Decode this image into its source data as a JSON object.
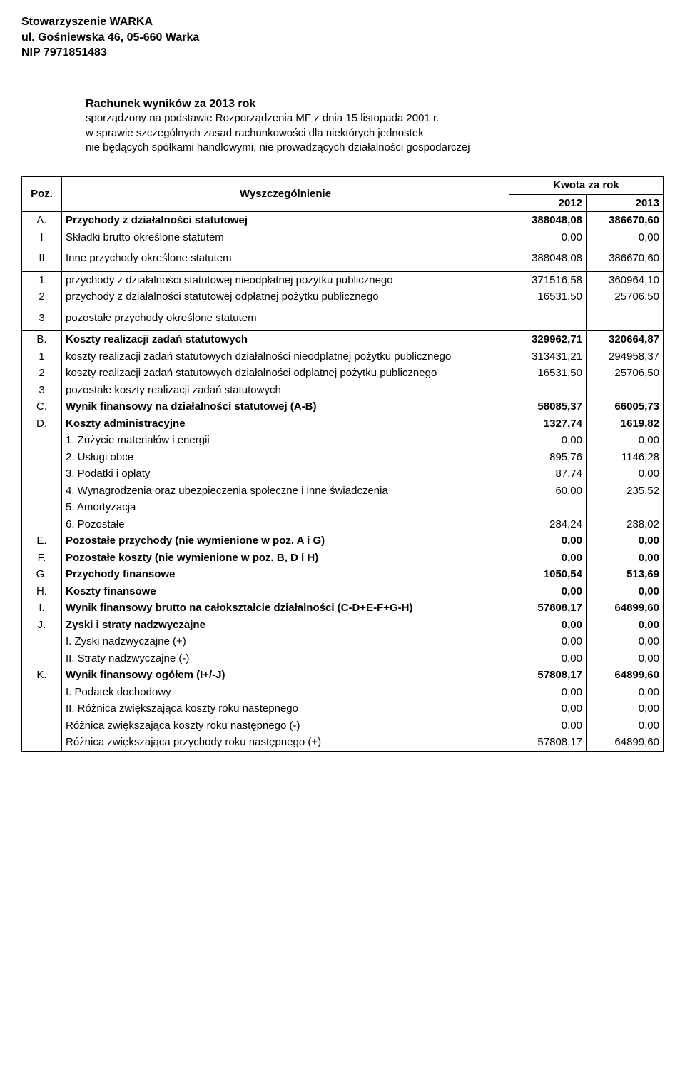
{
  "header": {
    "line1": "Stowarzyszenie WARKA",
    "line2": "ul. Gośniewska 46, 05-660 Warka",
    "line3": "NIP 7971851483"
  },
  "title": {
    "main": "Rachunek wyników za 2013 rok",
    "sub1": "sporządzony na podstawie Rozporządzenia MF z dnia 15 listopada 2001 r.",
    "sub2": "w sprawie szczególnych zasad rachunkowości dla niektórych jednostek",
    "sub3": "nie będących spółkami handlowymi, nie prowadzących działalności gospodarczej"
  },
  "table": {
    "col_poz": "Poz.",
    "col_desc": "Wyszczególnienie",
    "col_kwota": "Kwota za rok",
    "col_y1": "2012",
    "col_y2": "2013",
    "rows": [
      {
        "poz": "A.",
        "desc": "Przychody z działalności statutowej",
        "v1": "388048,08",
        "v2": "386670,60",
        "bold": true
      },
      {
        "poz": "I",
        "desc": "Składki brutto określone statutem",
        "v1": "0,00",
        "v2": "0,00"
      },
      {
        "poz": "II",
        "desc": "Inne przychody określone statutem",
        "v1": "388048,08",
        "v2": "386670,60",
        "spaced": true
      },
      {
        "poz": "1",
        "desc": "przychody z działalności statutowej nieodpłatnej pożytku publicznego",
        "v1": "371516,58",
        "v2": "360964,10"
      },
      {
        "poz": "2",
        "desc": "przychody z działalności statutowej odpłatnej pożytku publicznego",
        "v1": "16531,50",
        "v2": "25706,50"
      },
      {
        "poz": "3",
        "desc": "pozostałe przychody określone statutem",
        "v1": "",
        "v2": "",
        "spaced": true
      },
      {
        "poz": "B.",
        "desc": "Koszty realizacji zadań statutowych",
        "v1": "329962,71",
        "v2": "320664,87",
        "bold": true
      },
      {
        "poz": "1",
        "desc": "koszty realizacji zadań statutowych działalności nieodplatnej pożytku publicznego",
        "v1": "313431,21",
        "v2": "294958,37"
      },
      {
        "poz": "2",
        "desc": "koszty realizacji zadań statutowych działalności odplatnej pożytku publicznego",
        "v1": "16531,50",
        "v2": "25706,50"
      },
      {
        "poz": "3",
        "desc": "pozostałe koszty realizacji zadań statutowych",
        "v1": "",
        "v2": ""
      },
      {
        "poz": "C.",
        "desc": "Wynik finansowy na działalności statutowej (A-B)",
        "v1": "58085,37",
        "v2": "66005,73",
        "bold": true
      },
      {
        "poz": "D.",
        "desc": "Koszty administracyjne",
        "v1": "1327,74",
        "v2": "1619,82",
        "bold": true
      },
      {
        "poz": "",
        "desc": "1. Zużycie materiałów i energii",
        "v1": "0,00",
        "v2": "0,00"
      },
      {
        "poz": "",
        "desc": "2. Usługi obce",
        "v1": "895,76",
        "v2": "1146,28"
      },
      {
        "poz": "",
        "desc": "3. Podatki i opłaty",
        "v1": "87,74",
        "v2": "0,00"
      },
      {
        "poz": "",
        "desc": "4. Wynagrodzenia oraz ubezpieczenia społeczne i inne świadczenia",
        "v1": "60,00",
        "v2": "235,52"
      },
      {
        "poz": "",
        "desc": "5. Amortyzacja",
        "v1": "",
        "v2": ""
      },
      {
        "poz": "",
        "desc": "6. Pozostałe",
        "v1": "284,24",
        "v2": "238,02"
      },
      {
        "poz": "E.",
        "desc": "Pozostałe przychody (nie wymienione w poz. A i G)",
        "v1": "0,00",
        "v2": "0,00",
        "bold": true
      },
      {
        "poz": "F.",
        "desc": "Pozostałe koszty (nie wymienione w poz. B, D i H)",
        "v1": "0,00",
        "v2": "0,00",
        "bold": true
      },
      {
        "poz": "G.",
        "desc": "Przychody finansowe",
        "v1": "1050,54",
        "v2": "513,69",
        "bold": true
      },
      {
        "poz": "H.",
        "desc": "Koszty finansowe",
        "v1": "0,00",
        "v2": "0,00",
        "bold": true
      },
      {
        "poz": "I.",
        "desc": "Wynik finansowy brutto na całokształcie działalności (C-D+E-F+G-H)",
        "v1": "57808,17",
        "v2": "64899,60",
        "bold": true
      },
      {
        "poz": "J.",
        "desc": "Zyski i straty nadzwyczajne",
        "v1": "0,00",
        "v2": "0,00",
        "bold": true
      },
      {
        "poz": "",
        "desc": "I. Zyski nadzwyczajne (+)",
        "v1": "0,00",
        "v2": "0,00"
      },
      {
        "poz": "",
        "desc": "II. Straty nadzwyczajne (-)",
        "v1": "0,00",
        "v2": "0,00"
      },
      {
        "poz": "K.",
        "desc": "Wynik finansowy ogółem (I+/-J)",
        "v1": "57808,17",
        "v2": "64899,60",
        "bold": true
      },
      {
        "poz": "",
        "desc": "I. Podatek dochodowy",
        "v1": "0,00",
        "v2": "0,00"
      },
      {
        "poz": "",
        "desc": "II. Różnica zwiększająca koszty roku nastepnego",
        "v1": "0,00",
        "v2": "0,00"
      },
      {
        "poz": "",
        "desc": "Różnica zwiększająca koszty roku następnego (-)",
        "v1": "0,00",
        "v2": "0,00"
      },
      {
        "poz": "",
        "desc": "Różnica zwiększająca przychody roku następnego (+)",
        "v1": "57808,17",
        "v2": "64899,60"
      }
    ]
  }
}
